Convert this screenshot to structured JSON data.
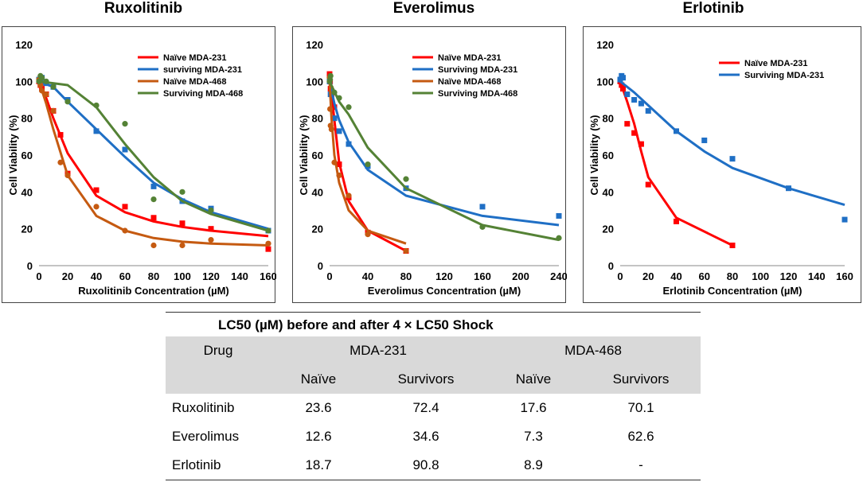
{
  "charts": [
    {
      "title": "Ruxolitinib",
      "xlabel": "Ruxolitinib Concentration (µM)",
      "ylabel": "Cell Viability (%)",
      "xlim": [
        0,
        160
      ],
      "ylim": [
        0,
        120
      ],
      "xticks": [
        0,
        20,
        40,
        60,
        80,
        100,
        120,
        140,
        160
      ],
      "yticks": [
        0,
        20,
        40,
        60,
        80,
        100,
        120
      ],
      "legend": [
        "Naïve MDA-231",
        "surviving MDA-231",
        "Naïve MDA-468",
        "Surviving MDA-468"
      ]
    },
    {
      "title": "Everolimus",
      "xlabel": "Everolimus Concentration (µM)",
      "ylabel": "Cell Viability (%)",
      "xlim": [
        0,
        240
      ],
      "ylim": [
        0,
        120
      ],
      "xticks": [
        0,
        40,
        80,
        120,
        160,
        200,
        240
      ],
      "yticks": [
        0,
        20,
        40,
        60,
        80,
        100,
        120
      ],
      "legend": [
        "Naïve MDA-231",
        "Surviving MDA-231",
        "Naïve MDA-468",
        "Surviving MDA-468"
      ]
    },
    {
      "title": "Erlotinib",
      "xlabel": "Erlotinib Concentration (µM)",
      "ylabel": "Cell Viability (%)",
      "xlim": [
        0,
        160
      ],
      "ylim": [
        0,
        120
      ],
      "xticks": [
        0,
        20,
        40,
        60,
        80,
        100,
        120,
        140,
        160
      ],
      "yticks": [
        0,
        20,
        40,
        60,
        80,
        100,
        120
      ],
      "legend": [
        "Naïve MDA-231",
        "Surviving MDA-231"
      ]
    }
  ],
  "chart_data": [
    {
      "type": "scatter",
      "title": "Ruxolitinib",
      "series": [
        {
          "name": "Naïve MDA-231",
          "color": "#ff0000",
          "marker": "square",
          "points": [
            [
              0,
              100
            ],
            [
              1,
              98
            ],
            [
              2,
              96
            ],
            [
              5,
              93
            ],
            [
              10,
              84
            ],
            [
              15,
              71
            ],
            [
              20,
              50
            ],
            [
              40,
              41
            ],
            [
              60,
              32
            ],
            [
              80,
              26
            ],
            [
              100,
              23
            ],
            [
              120,
              20
            ],
            [
              160,
              9
            ]
          ],
          "curve": [
            [
              0,
              100
            ],
            [
              5,
              91
            ],
            [
              10,
              80
            ],
            [
              20,
              61
            ],
            [
              40,
              38
            ],
            [
              60,
              29
            ],
            [
              80,
              24
            ],
            [
              100,
              21
            ],
            [
              120,
              19
            ],
            [
              160,
              16
            ]
          ]
        },
        {
          "name": "surviving MDA-231",
          "color": "#1f6fc5",
          "marker": "square",
          "points": [
            [
              0,
              101
            ],
            [
              1,
              100
            ],
            [
              2,
              102
            ],
            [
              5,
              99
            ],
            [
              10,
              97
            ],
            [
              20,
              90
            ],
            [
              40,
              73
            ],
            [
              60,
              63
            ],
            [
              80,
              43
            ],
            [
              100,
              35
            ],
            [
              120,
              31
            ],
            [
              160,
              19
            ]
          ],
          "curve": [
            [
              0,
              100
            ],
            [
              10,
              97
            ],
            [
              20,
              89
            ],
            [
              40,
              74
            ],
            [
              60,
              59
            ],
            [
              80,
              45
            ],
            [
              100,
              36
            ],
            [
              120,
              29
            ],
            [
              160,
              20
            ]
          ]
        },
        {
          "name": "Naïve MDA-468",
          "color": "#c55a11",
          "marker": "circle",
          "points": [
            [
              0,
              101
            ],
            [
              1,
              98
            ],
            [
              2,
              95
            ],
            [
              5,
              93
            ],
            [
              10,
              84
            ],
            [
              15,
              56
            ],
            [
              20,
              49
            ],
            [
              40,
              32
            ],
            [
              60,
              19
            ],
            [
              80,
              11
            ],
            [
              100,
              11
            ],
            [
              120,
              14
            ],
            [
              160,
              12
            ]
          ],
          "curve": [
            [
              0,
              100
            ],
            [
              5,
              88
            ],
            [
              10,
              74
            ],
            [
              20,
              49
            ],
            [
              40,
              27
            ],
            [
              60,
              19
            ],
            [
              80,
              15
            ],
            [
              100,
              13
            ],
            [
              120,
              12
            ],
            [
              160,
              11
            ]
          ]
        },
        {
          "name": "Surviving MDA-468",
          "color": "#548235",
          "marker": "circle",
          "points": [
            [
              0,
              100
            ],
            [
              1,
              103
            ],
            [
              2,
              102
            ],
            [
              5,
              100
            ],
            [
              10,
              97
            ],
            [
              20,
              89
            ],
            [
              40,
              87
            ],
            [
              60,
              77
            ],
            [
              80,
              36
            ],
            [
              100,
              40
            ],
            [
              120,
              30
            ],
            [
              160,
              19
            ]
          ],
          "curve": [
            [
              0,
              100
            ],
            [
              20,
              98
            ],
            [
              40,
              86
            ],
            [
              60,
              66
            ],
            [
              80,
              48
            ],
            [
              100,
              35
            ],
            [
              120,
              28
            ],
            [
              160,
              19
            ]
          ]
        }
      ],
      "xlim": [
        0,
        160
      ],
      "ylim": [
        0,
        120
      ]
    },
    {
      "type": "scatter",
      "title": "Everolimus",
      "series": [
        {
          "name": "Naïve MDA-231",
          "color": "#ff0000",
          "marker": "square",
          "points": [
            [
              0,
              104
            ],
            [
              0.5,
              100
            ],
            [
              1,
              96
            ],
            [
              2,
              93
            ],
            [
              5,
              86
            ],
            [
              10,
              55
            ],
            [
              20,
              37
            ],
            [
              40,
              18
            ],
            [
              80,
              8
            ]
          ],
          "curve": [
            [
              0,
              100
            ],
            [
              2,
              93
            ],
            [
              5,
              79
            ],
            [
              10,
              56
            ],
            [
              20,
              35
            ],
            [
              40,
              19
            ],
            [
              80,
              8
            ]
          ]
        },
        {
          "name": "Surviving MDA-231",
          "color": "#1f6fc5",
          "marker": "square",
          "points": [
            [
              0,
              100
            ],
            [
              1,
              93
            ],
            [
              5,
              80
            ],
            [
              10,
              73
            ],
            [
              20,
              66
            ],
            [
              40,
              54
            ],
            [
              80,
              42
            ],
            [
              160,
              32
            ],
            [
              240,
              27
            ]
          ],
          "curve": [
            [
              0,
              100
            ],
            [
              5,
              88
            ],
            [
              10,
              79
            ],
            [
              20,
              67
            ],
            [
              40,
              52
            ],
            [
              80,
              38
            ],
            [
              160,
              27
            ],
            [
              240,
              22
            ]
          ]
        },
        {
          "name": "Naïve MDA-468",
          "color": "#c55a11",
          "marker": "circle",
          "points": [
            [
              0,
              102
            ],
            [
              0.5,
              85
            ],
            [
              1,
              76
            ],
            [
              2,
              74
            ],
            [
              5,
              56
            ],
            [
              10,
              49
            ],
            [
              20,
              38
            ],
            [
              40,
              17
            ],
            [
              80,
              8
            ]
          ],
          "curve": [
            [
              0,
              100
            ],
            [
              2,
              80
            ],
            [
              5,
              60
            ],
            [
              10,
              45
            ],
            [
              20,
              30
            ],
            [
              40,
              19
            ],
            [
              80,
              12
            ]
          ]
        },
        {
          "name": "Surviving MDA-468",
          "color": "#548235",
          "marker": "circle",
          "points": [
            [
              0,
              100
            ],
            [
              0.5,
              101
            ],
            [
              1,
              103
            ],
            [
              5,
              94
            ],
            [
              10,
              91
            ],
            [
              20,
              86
            ],
            [
              40,
              55
            ],
            [
              80,
              47
            ],
            [
              160,
              21
            ],
            [
              240,
              15
            ]
          ],
          "curve": [
            [
              0,
              100
            ],
            [
              10,
              89
            ],
            [
              20,
              82
            ],
            [
              40,
              64
            ],
            [
              80,
              42
            ],
            [
              160,
              22
            ],
            [
              240,
              14
            ]
          ]
        }
      ],
      "xlim": [
        0,
        240
      ],
      "ylim": [
        0,
        120
      ]
    },
    {
      "type": "scatter",
      "title": "Erlotinib",
      "series": [
        {
          "name": "Naïve MDA-231",
          "color": "#ff0000",
          "marker": "square",
          "points": [
            [
              0,
              100
            ],
            [
              1,
              98
            ],
            [
              2,
              96
            ],
            [
              5,
              77
            ],
            [
              10,
              72
            ],
            [
              15,
              66
            ],
            [
              20,
              44
            ],
            [
              40,
              24
            ],
            [
              80,
              11
            ]
          ],
          "curve": [
            [
              0,
              100
            ],
            [
              5,
              89
            ],
            [
              10,
              77
            ],
            [
              15,
              62
            ],
            [
              20,
              48
            ],
            [
              40,
              26
            ],
            [
              80,
              11
            ]
          ]
        },
        {
          "name": "Surviving MDA-231",
          "color": "#1f6fc5",
          "marker": "square",
          "points": [
            [
              0,
              101
            ],
            [
              1,
              103
            ],
            [
              2,
              102
            ],
            [
              5,
              93
            ],
            [
              10,
              90
            ],
            [
              15,
              88
            ],
            [
              20,
              84
            ],
            [
              40,
              73
            ],
            [
              60,
              68
            ],
            [
              80,
              58
            ],
            [
              120,
              42
            ],
            [
              160,
              25
            ]
          ],
          "curve": [
            [
              0,
              100
            ],
            [
              10,
              94
            ],
            [
              20,
              87
            ],
            [
              40,
              73
            ],
            [
              60,
              62
            ],
            [
              80,
              53
            ],
            [
              120,
              42
            ],
            [
              160,
              33
            ]
          ]
        }
      ],
      "xlim": [
        0,
        160
      ],
      "ylim": [
        0,
        120
      ]
    },
    {
      "type": "table",
      "title": "LC50 (µM) before and after 4 × LC50 Shock",
      "columns": [
        "Drug",
        "MDA-231 Naïve",
        "MDA-231 Survivors",
        "MDA-468 Naïve",
        "MDA-468 Survivors"
      ],
      "rows": [
        [
          "Ruxolitinib",
          "23.6",
          "72.4",
          "17.6",
          "70.1"
        ],
        [
          "Everolimus",
          "12.6",
          "34.6",
          "7.3",
          "62.6"
        ],
        [
          "Erlotinib",
          "18.7",
          "90.8",
          "8.9",
          "-"
        ]
      ]
    }
  ],
  "table": {
    "title": "LC50 (µM) before and after 4 × LC50 Shock",
    "drug_header": "Drug",
    "group1": "MDA-231",
    "group2": "MDA-468",
    "sub1": "Naïve",
    "sub2": "Survivors",
    "sub3": "Naïve",
    "sub4": "Survivors",
    "rows": [
      {
        "drug": "Ruxolitinib",
        "v1": "23.6",
        "v2": "72.4",
        "v3": "17.6",
        "v4": "70.1"
      },
      {
        "drug": "Everolimus",
        "v1": "12.6",
        "v2": "34.6",
        "v3": "7.3",
        "v4": "62.6"
      },
      {
        "drug": "Erlotinib",
        "v1": "18.7",
        "v2": "90.8",
        "v3": "8.9",
        "v4": "-"
      }
    ]
  }
}
